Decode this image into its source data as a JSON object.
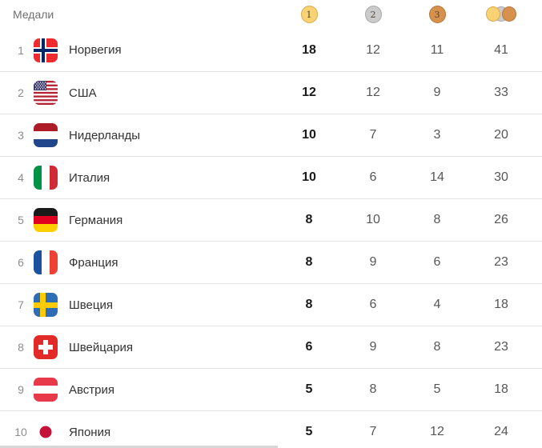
{
  "widget": {
    "title": "Медали"
  },
  "columns": {
    "gold_label": "1",
    "silver_label": "2",
    "bronze_label": "3",
    "total_icon": "gold-silver-bronze-coins"
  },
  "rows": [
    {
      "rank": "1",
      "country": "Норвегия",
      "flag": "norway",
      "gold": "18",
      "silver": "12",
      "bronze": "11",
      "total": "41"
    },
    {
      "rank": "2",
      "country": "США",
      "flag": "usa",
      "gold": "12",
      "silver": "12",
      "bronze": "9",
      "total": "33"
    },
    {
      "rank": "3",
      "country": "Нидерланды",
      "flag": "netherlands",
      "gold": "10",
      "silver": "7",
      "bronze": "3",
      "total": "20"
    },
    {
      "rank": "4",
      "country": "Италия",
      "flag": "italy",
      "gold": "10",
      "silver": "6",
      "bronze": "14",
      "total": "30"
    },
    {
      "rank": "5",
      "country": "Германия",
      "flag": "germany",
      "gold": "8",
      "silver": "10",
      "bronze": "8",
      "total": "26"
    },
    {
      "rank": "6",
      "country": "Франция",
      "flag": "france",
      "gold": "8",
      "silver": "9",
      "bronze": "6",
      "total": "23"
    },
    {
      "rank": "7",
      "country": "Швеция",
      "flag": "sweden",
      "gold": "8",
      "silver": "6",
      "bronze": "4",
      "total": "18"
    },
    {
      "rank": "8",
      "country": "Швейцария",
      "flag": "switzerland",
      "gold": "6",
      "silver": "9",
      "bronze": "8",
      "total": "23"
    },
    {
      "rank": "9",
      "country": "Австрия",
      "flag": "austria",
      "gold": "5",
      "silver": "8",
      "bronze": "5",
      "total": "18"
    },
    {
      "rank": "10",
      "country": "Япония",
      "flag": "japan",
      "gold": "5",
      "silver": "7",
      "bronze": "12",
      "total": "24"
    }
  ],
  "colors": {
    "gold_medal": "#F8D273",
    "gold_border": "#DBA94D",
    "silver_medal": "#CBCBCB",
    "silver_border": "#A8A8A8",
    "bronze_medal": "#D6914E",
    "bronze_border": "#B6763B",
    "divider": "#E3E3E3",
    "country_text": "#333333",
    "value_text": "#565656",
    "gold_value_text": "#1A1A1A",
    "edge_bar": "#D6D6D6"
  }
}
